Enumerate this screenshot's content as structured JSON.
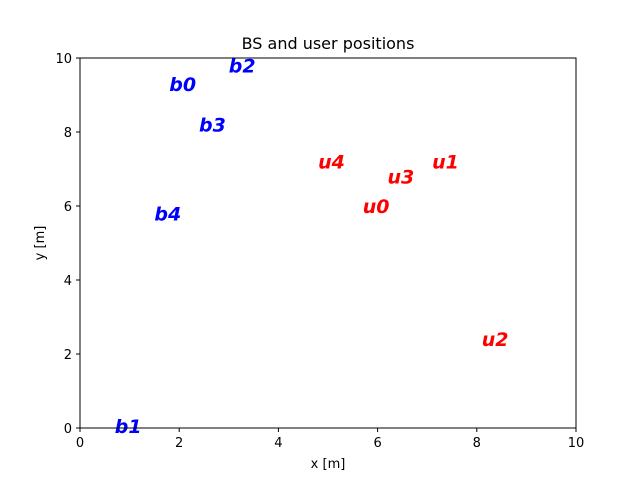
{
  "chart_data": {
    "type": "scatter",
    "title": "BS and user positions",
    "xlabel": "x [m]",
    "ylabel": "y [m]",
    "xlim": [
      0,
      10
    ],
    "ylim": [
      0,
      10
    ],
    "xticks": [
      "0",
      "2",
      "4",
      "6",
      "8",
      "10"
    ],
    "yticks": [
      "0",
      "2",
      "4",
      "6",
      "8",
      "10"
    ],
    "grid": false,
    "series": [
      {
        "color": "#0000ff",
        "points": [
          {
            "label": "b0",
            "x": 1.8,
            "y": 9.3
          },
          {
            "label": "b1",
            "x": 0.7,
            "y": 0.05
          },
          {
            "label": "b2",
            "x": 3.0,
            "y": 9.8
          },
          {
            "label": "b3",
            "x": 2.4,
            "y": 8.2
          },
          {
            "label": "b4",
            "x": 1.5,
            "y": 5.8
          }
        ]
      },
      {
        "color": "#ff0000",
        "points": [
          {
            "label": "u0",
            "x": 5.7,
            "y": 6.0
          },
          {
            "label": "u1",
            "x": 7.1,
            "y": 7.2
          },
          {
            "label": "u2",
            "x": 8.1,
            "y": 2.4
          },
          {
            "label": "u3",
            "x": 6.2,
            "y": 6.8
          },
          {
            "label": "u4",
            "x": 4.8,
            "y": 7.2
          }
        ]
      }
    ]
  }
}
